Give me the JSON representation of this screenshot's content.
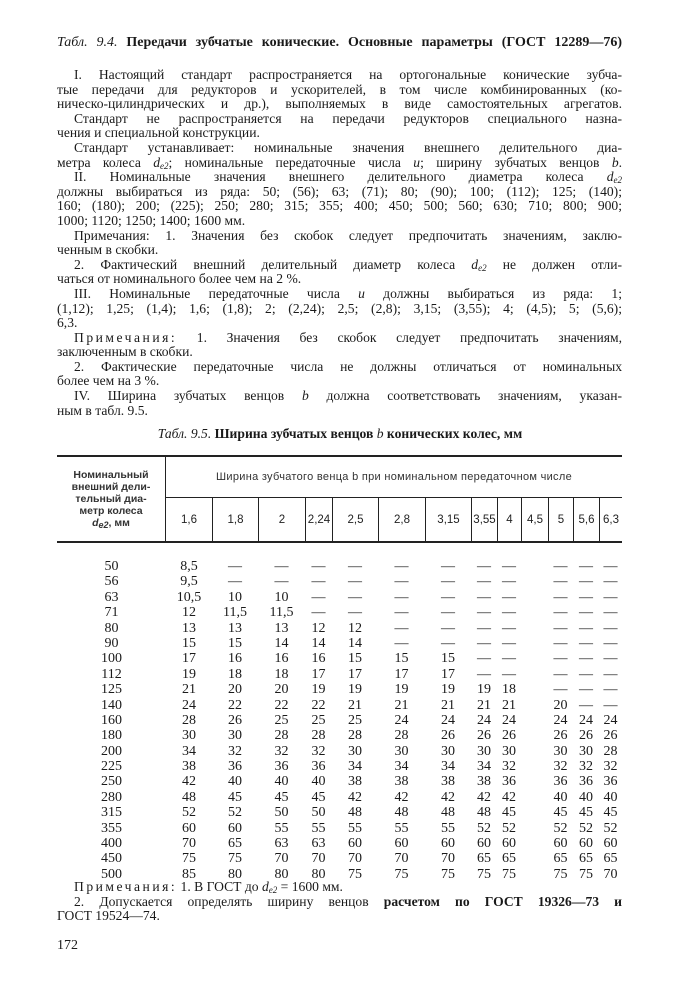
{
  "title": [
    {
      "text": "Табл. 9.4.",
      "style": "i"
    },
    {
      "text": " Передачи зубчатые конические. Основные параметры (ГОСТ 12289—76)",
      "style": "b"
    }
  ],
  "body_lines": [
    {
      "indent": true,
      "seg": [
        "I. Настоящий стандарт распространяется на ортогональные конические зубча-"
      ]
    },
    {
      "seg": [
        "тые передачи для редукторов и ускорителей,  в том числе  комбинированных (ко-"
      ]
    },
    {
      "seg": [
        "ническо-цилиндрических и др.), выполняемых в виде самостоятельных агрегатов."
      ]
    },
    {
      "indent": true,
      "seg": [
        "Стандарт не распространяется на передачи редукторов специального назна-"
      ]
    },
    {
      "last": true,
      "seg": [
        "чения и специальной конструкции."
      ]
    },
    {
      "indent": true,
      "seg": [
        "Стандарт устанавливает: номинальные значения внешнего делительного диа-"
      ]
    },
    {
      "seg": [
        "метра колеса ",
        {
          "text": "d",
          "style": "i"
        },
        {
          "text": "e2",
          "style": "sub"
        },
        "; номинальные передаточные числа ",
        {
          "text": "u",
          "style": "i"
        },
        "; ширину зубчатых венцов ",
        {
          "text": "b",
          "style": "i"
        },
        "."
      ]
    },
    {
      "indent": true,
      "seg": [
        "II. Номинальные значения  внешнего  делительного диаметра колеса ",
        {
          "text": "d",
          "style": "i"
        },
        {
          "text": "e2",
          "style": "sub"
        }
      ]
    },
    {
      "seg": [
        "должны выбираться из ряда: 50; (56); 63; (71); 80; (90); 100; (112); 125; (140);"
      ]
    },
    {
      "seg": [
        "160; (180); 200; (225); 250; 280; 315; 355; 400; 450; 500; 560; 630; 710; 800; 900;"
      ]
    },
    {
      "last": true,
      "seg": [
        "1000; 1120; 1250; 1400; 1600 мм."
      ]
    },
    {
      "indent": true,
      "seg": [
        "Примечания: 1. Значения без скобок следует предпочитать значениям, заклю-"
      ]
    },
    {
      "last": true,
      "seg": [
        "ченным в скобки."
      ]
    },
    {
      "indent": true,
      "seg": [
        "2. Фактический внешний делительный диаметр колеса ",
        {
          "text": "d",
          "style": "i"
        },
        {
          "text": "e2",
          "style": "sub"
        },
        " не должен отли-"
      ]
    },
    {
      "last": true,
      "seg": [
        "чаться от номинального более чем на 2 %."
      ]
    },
    {
      "indent": true,
      "seg": [
        "III. Номинальные передаточные числа ",
        {
          "text": "u",
          "style": "i"
        },
        " должны выбираться из ряда: 1;"
      ]
    },
    {
      "seg": [
        "(1,12); 1,25; (1,4); 1,6;  (1,8); 2; (2,24); 2,5; (2,8); 3,15; (3,55); 4; (4,5); 5; (5,6);"
      ]
    },
    {
      "last": true,
      "seg": [
        "6,3."
      ]
    },
    {
      "indent": true,
      "seg": [
        {
          "text": "Примечания:",
          "style": "sp"
        },
        " 1. Значения без скобок следует предпочитать значениям,"
      ]
    },
    {
      "last": true,
      "seg": [
        "заключенным в скобки."
      ]
    },
    {
      "indent": true,
      "seg": [
        "2. Фактические передаточные числа не должны отличаться от номинальных"
      ]
    },
    {
      "last": true,
      "seg": [
        "более чем на 3 %."
      ]
    },
    {
      "indent": true,
      "seg": [
        "IV. Ширина зубчатых венцов ",
        {
          "text": "b",
          "style": "i"
        },
        " должна соответствовать значениям, указан-"
      ]
    },
    {
      "last": true,
      "seg": [
        "ным в табл. 9.5."
      ]
    }
  ],
  "caption": [
    {
      "text": "Табл. 9.5.",
      "style": "i"
    },
    {
      "text": " Ширина зубчатых венцов ",
      "style": "b"
    },
    {
      "text": "b",
      "style": "i"
    },
    {
      "text": " конических колес, мм",
      "style": "b"
    }
  ],
  "table": {
    "left_header": [
      "Номинальный",
      "внешний дели-",
      "тельный диа-",
      "метр колеса"
    ],
    "left_header_var": "d",
    "left_header_sub": "e2",
    "left_header_unit": ", мм",
    "group_header": "Ширина зубчатого венца b при номинальном передаточном числе",
    "columns": [
      "1,6",
      "1,8",
      "2",
      "2,24",
      "2,5",
      "2,8",
      "3,15",
      "3,55",
      "4",
      "4,5",
      "5",
      "5,6",
      "6,3"
    ],
    "rows": [
      {
        "d": "50",
        "b": [
          "8,5",
          "—",
          "—",
          "—",
          "—",
          "—",
          "—",
          "—",
          "—",
          "",
          "—",
          "—",
          "—"
        ]
      },
      {
        "d": "56",
        "b": [
          "9,5",
          "—",
          "—",
          "—",
          "—",
          "—",
          "—",
          "—",
          "—",
          "",
          "—",
          "—",
          "—"
        ]
      },
      {
        "d": "63",
        "b": [
          "10,5",
          "10",
          "10",
          "—",
          "—",
          "—",
          "—",
          "—",
          "—",
          "",
          "—",
          "—",
          "—"
        ]
      },
      {
        "d": "71",
        "b": [
          "12",
          "11,5",
          "11,5",
          "—",
          "—",
          "—",
          "—",
          "—",
          "—",
          "",
          "—",
          "—",
          "—"
        ]
      },
      {
        "d": "80",
        "b": [
          "13",
          "13",
          "13",
          "12",
          "12",
          "—",
          "—",
          "—",
          "—",
          "",
          "—",
          "—",
          "—"
        ]
      },
      {
        "d": "90",
        "b": [
          "15",
          "15",
          "14",
          "14",
          "14",
          "—",
          "—",
          "—",
          "—",
          "",
          "—",
          "—",
          "—"
        ]
      },
      {
        "d": "100",
        "b": [
          "17",
          "16",
          "16",
          "16",
          "15",
          "15",
          "15",
          "—",
          "—",
          "",
          "—",
          "—",
          "—"
        ]
      },
      {
        "d": "112",
        "b": [
          "19",
          "18",
          "18",
          "17",
          "17",
          "17",
          "17",
          "—",
          "—",
          "",
          "—",
          "—",
          "—"
        ]
      },
      {
        "d": "125",
        "b": [
          "21",
          "20",
          "20",
          "19",
          "19",
          "19",
          "19",
          "19",
          "18",
          "",
          "—",
          "—",
          "—"
        ]
      },
      {
        "d": "140",
        "b": [
          "24",
          "22",
          "22",
          "22",
          "21",
          "21",
          "21",
          "21",
          "21",
          "",
          "20",
          "—",
          "—"
        ]
      },
      {
        "d": "160",
        "b": [
          "28",
          "26",
          "25",
          "25",
          "25",
          "24",
          "24",
          "24",
          "24",
          "",
          "24",
          "24",
          "24"
        ]
      },
      {
        "d": "180",
        "b": [
          "30",
          "30",
          "28",
          "28",
          "28",
          "28",
          "26",
          "26",
          "26",
          "",
          "26",
          "26",
          "26"
        ]
      },
      {
        "d": "200",
        "b": [
          "34",
          "32",
          "32",
          "32",
          "30",
          "30",
          "30",
          "30",
          "30",
          "",
          "30",
          "30",
          "28"
        ]
      },
      {
        "d": "225",
        "b": [
          "38",
          "36",
          "36",
          "36",
          "34",
          "34",
          "34",
          "34",
          "32",
          "",
          "32",
          "32",
          "32"
        ]
      },
      {
        "d": "250",
        "b": [
          "42",
          "40",
          "40",
          "40",
          "38",
          "38",
          "38",
          "38",
          "36",
          "",
          "36",
          "36",
          "36"
        ]
      },
      {
        "d": "280",
        "b": [
          "48",
          "45",
          "45",
          "45",
          "42",
          "42",
          "42",
          "42",
          "42",
          "",
          "40",
          "40",
          "40"
        ]
      },
      {
        "d": "315",
        "b": [
          "52",
          "52",
          "50",
          "50",
          "48",
          "48",
          "48",
          "48",
          "45",
          "",
          "45",
          "45",
          "45"
        ]
      },
      {
        "d": "355",
        "b": [
          "60",
          "60",
          "55",
          "55",
          "55",
          "55",
          "55",
          "52",
          "52",
          "",
          "52",
          "52",
          "52"
        ]
      },
      {
        "d": "400",
        "b": [
          "70",
          "65",
          "63",
          "63",
          "60",
          "60",
          "60",
          "60",
          "60",
          "",
          "60",
          "60",
          "60"
        ]
      },
      {
        "d": "450",
        "b": [
          "75",
          "75",
          "70",
          "70",
          "70",
          "70",
          "70",
          "65",
          "65",
          "",
          "65",
          "65",
          "65"
        ]
      },
      {
        "d": "500",
        "b": [
          "85",
          "80",
          "80",
          "80",
          "75",
          "75",
          "75",
          "75",
          "75",
          "",
          "75",
          "75",
          "70"
        ]
      }
    ]
  },
  "notes_lines": [
    {
      "indent": true,
      "last": true,
      "seg": [
        {
          "text": "Примечания:",
          "style": "sp"
        },
        " 1. В ГОСТ до ",
        {
          "text": "d",
          "style": "i"
        },
        {
          "text": "e2",
          "style": "sub"
        },
        " = 1600 мм."
      ]
    },
    {
      "indent": true,
      "seg": [
        "2. Допускается определять ширину венцов ",
        {
          "text": "расчетом по ГОСТ 19326—73 и",
          "style": "b"
        }
      ]
    },
    {
      "last": true,
      "seg": [
        "ГОСТ 19524—74."
      ]
    }
  ],
  "page_number": "172"
}
